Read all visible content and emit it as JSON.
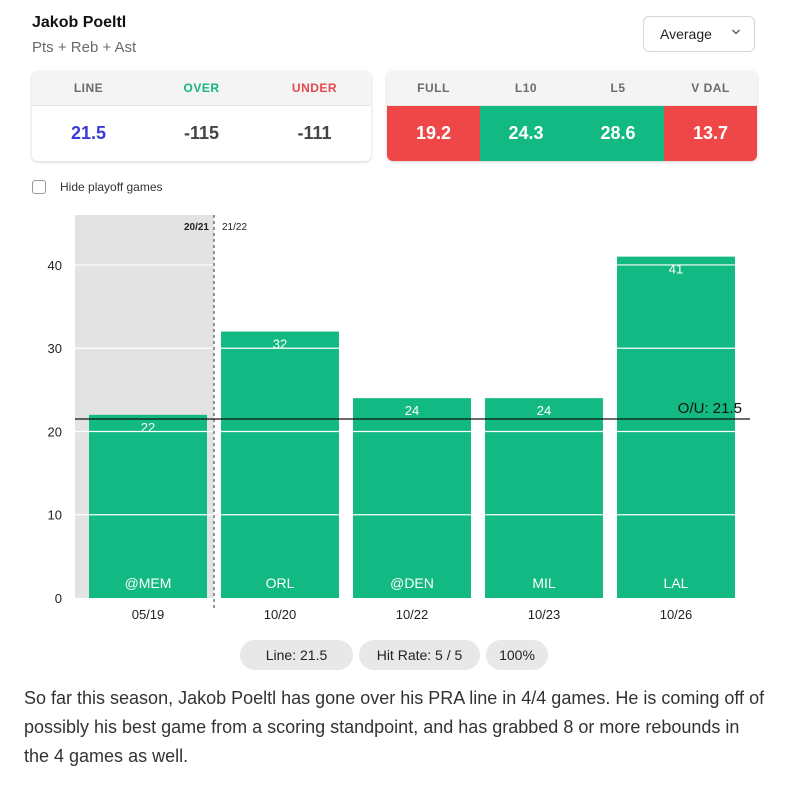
{
  "header": {
    "player_name": "Jakob Poeltl",
    "stat_label": "Pts + Reb + Ast",
    "mode_select": {
      "value": "Average",
      "icon": "chevron-down-icon"
    }
  },
  "line_card": {
    "cells": [
      {
        "label": "LINE",
        "value": "21.5",
        "label_color": "#6b6b6b",
        "value_color": "#3b3bd6"
      },
      {
        "label": "OVER",
        "value": "-115",
        "label_color": "#17b57f",
        "value_color": "#444444"
      },
      {
        "label": "UNDER",
        "value": "-111",
        "label_color": "#e5484d",
        "value_color": "#444444"
      }
    ]
  },
  "splits_card": {
    "cells": [
      {
        "label": "FULL",
        "value": "19.2",
        "bg": "#ef4747"
      },
      {
        "label": "L10",
        "value": "24.3",
        "bg": "#13b982"
      },
      {
        "label": "L5",
        "value": "28.6",
        "bg": "#13b982"
      },
      {
        "label": "V DAL",
        "value": "13.7",
        "bg": "#ef4747"
      }
    ]
  },
  "hide_playoff": {
    "label": "Hide playoff games",
    "checked": false
  },
  "chart_data": {
    "type": "bar",
    "categories": [
      "05/19",
      "10/20",
      "10/22",
      "10/23",
      "10/26"
    ],
    "opponents": [
      "@MEM",
      "ORL",
      "@DEN",
      "MIL",
      "LAL"
    ],
    "values": [
      22,
      32,
      24,
      24,
      41
    ],
    "ylim": [
      0,
      46
    ],
    "yticks": [
      0,
      10,
      20,
      30,
      40
    ],
    "line": {
      "value": 21.5,
      "label": "O/U: 21.5"
    },
    "season_labels": [
      "20/21",
      "21/22"
    ],
    "previous_season_count": 1,
    "bar_color": "#13b982",
    "shade_color": "#e3e3e3",
    "title": "",
    "xlabel": "",
    "ylabel": ""
  },
  "summary_pills": {
    "line": "Line: 21.5",
    "hit_rate": "Hit Rate: 5 / 5",
    "percent": "100%"
  },
  "description": "So far this season, Jakob Poeltl has gone over his PRA line in 4/4 games. He is coming off of possibly his best game from a scoring standpoint, and has grabbed 8 or more rebounds in the 4 games as well."
}
